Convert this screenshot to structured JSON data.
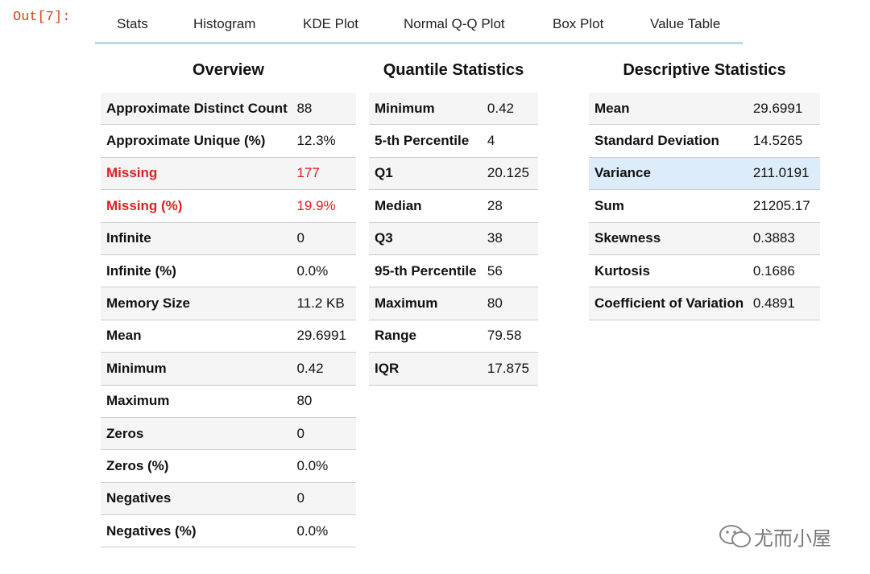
{
  "prompt": "Out[7]:",
  "tabs": [
    "Stats",
    "Histogram",
    "KDE Plot",
    "Normal Q-Q Plot",
    "Box Plot",
    "Value Table"
  ],
  "tables": [
    {
      "title": "Overview",
      "rows": [
        [
          "Approximate Distinct Count",
          "88"
        ],
        [
          "Approximate Unique (%)",
          "12.3%"
        ],
        [
          "Missing",
          "177"
        ],
        [
          "Missing (%)",
          "19.9%"
        ],
        [
          "Infinite",
          "0"
        ],
        [
          "Infinite (%)",
          "0.0%"
        ],
        [
          "Memory Size",
          "11.2 KB"
        ],
        [
          "Mean",
          "29.6991"
        ],
        [
          "Minimum",
          "0.42"
        ],
        [
          "Maximum",
          "80"
        ],
        [
          "Zeros",
          "0"
        ],
        [
          "Zeros (%)",
          "0.0%"
        ],
        [
          "Negatives",
          "0"
        ],
        [
          "Negatives (%)",
          "0.0%"
        ]
      ]
    },
    {
      "title": "Quantile Statistics",
      "rows": [
        [
          "Minimum",
          "0.42"
        ],
        [
          "5-th Percentile",
          "4"
        ],
        [
          "Q1",
          "20.125"
        ],
        [
          "Median",
          "28"
        ],
        [
          "Q3",
          "38"
        ],
        [
          "95-th Percentile",
          "56"
        ],
        [
          "Maximum",
          "80"
        ],
        [
          "Range",
          "79.58"
        ],
        [
          "IQR",
          "17.875"
        ]
      ]
    },
    {
      "title": "Descriptive Statistics",
      "rows": [
        [
          "Mean",
          "29.6991"
        ],
        [
          "Standard Deviation",
          "14.5265"
        ],
        [
          "Variance",
          "211.0191"
        ],
        [
          "Sum",
          "21205.17"
        ],
        [
          "Skewness",
          "0.3883"
        ],
        [
          "Kurtosis",
          "0.1686"
        ],
        [
          "Coefficient of Variation",
          "0.4891"
        ]
      ]
    }
  ],
  "watermark": "尤而小屋"
}
